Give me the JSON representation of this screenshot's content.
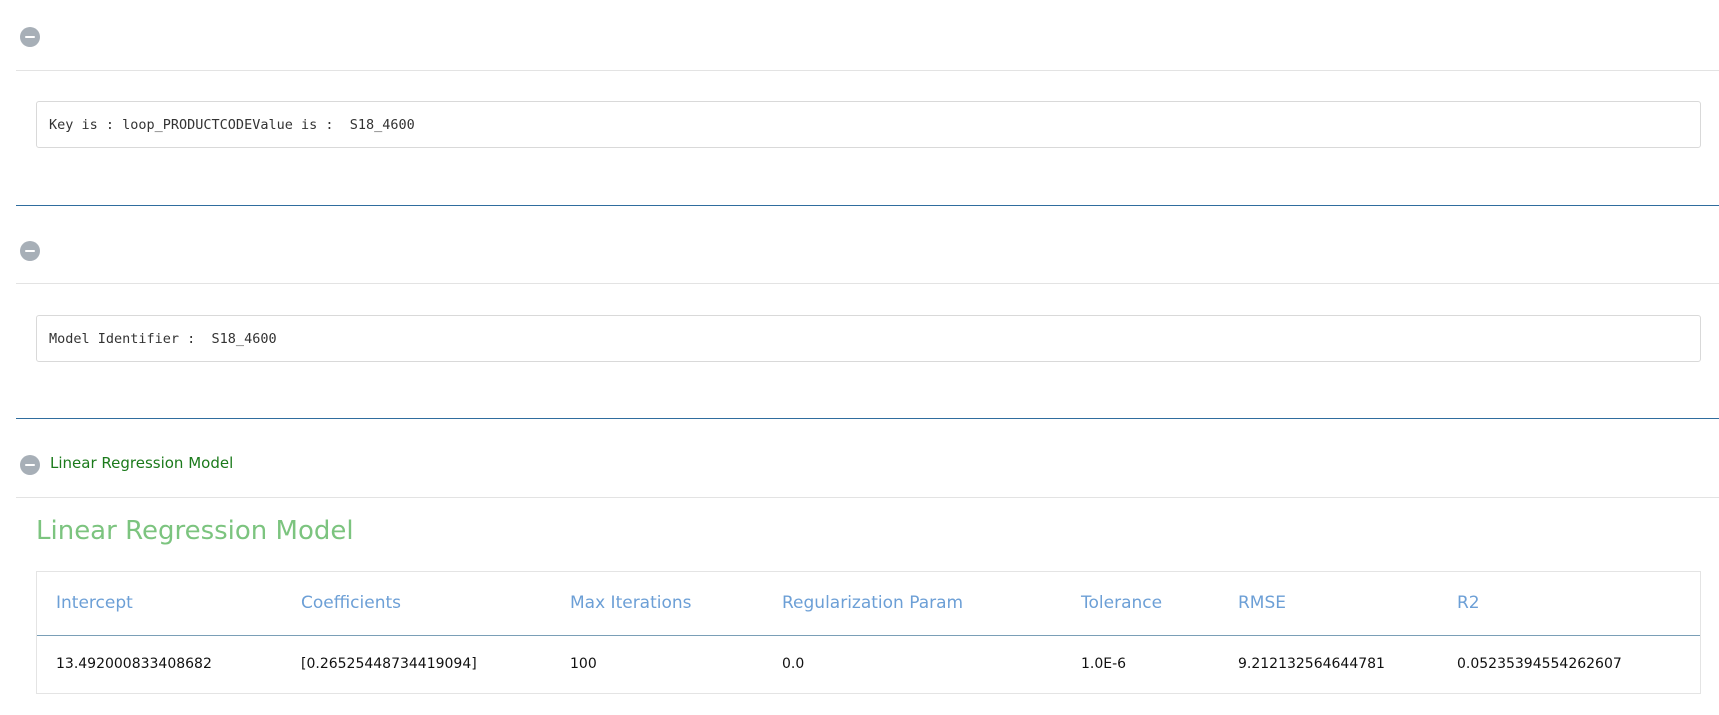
{
  "sections": [
    {
      "title": "",
      "code_text": "Key is : loop_PRODUCTCODEValue is :  S18_4600"
    },
    {
      "title": "",
      "code_text": "Model Identifier :  S18_4600"
    },
    {
      "title": "Linear Regression Model"
    }
  ],
  "model": {
    "heading": "Linear Regression Model",
    "columns": [
      "Intercept",
      "Coefficients",
      "Max Iterations",
      "Regularization Param",
      "Tolerance",
      "RMSE",
      "R2"
    ],
    "row": [
      "13.492000833408682",
      "[0.26525448734419094]",
      "100",
      "0.0",
      "1.0E-6",
      "9.212132564644781",
      "0.05235394554262607"
    ]
  },
  "colors": {
    "toggle": "#a7afb7",
    "section_title": "#1b7a1b",
    "divider": "#2f6d9e",
    "model_heading": "#7cc47f",
    "table_header": "#6c9fd6"
  },
  "icons": {
    "toggle": "minus-circle-icon"
  }
}
